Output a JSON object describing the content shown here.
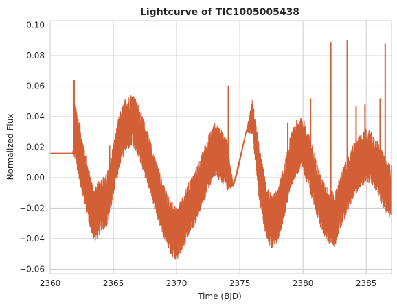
{
  "chart_data": {
    "type": "line",
    "title": "Lightcurve of TIC1005005438",
    "xlabel": "Time (BJD)",
    "ylabel": "Normalized Flux",
    "xlim": [
      2360,
      2387
    ],
    "ylim": [
      -0.063,
      0.103
    ],
    "grid": true,
    "line_color": "#d35f37",
    "xticks": [
      2360,
      2365,
      2370,
      2375,
      2380,
      2385
    ],
    "xtick_labels": [
      "2360",
      "2365",
      "2370",
      "2375",
      "2380",
      "2385"
    ],
    "yticks": [
      -0.06,
      -0.04,
      -0.02,
      0.0,
      0.02,
      0.04,
      0.06,
      0.08,
      0.1
    ],
    "ytick_labels": [
      "−0.06",
      "−0.04",
      "−0.02",
      "0.00",
      "0.02",
      "0.04",
      "0.06",
      "0.08",
      "0.10"
    ],
    "series": [
      {
        "x": [
          2360.0,
          2361.8,
          2362.0,
          2362.5,
          2363.0,
          2363.5,
          2364.0,
          2364.5,
          2365.0,
          2365.5,
          2366.0,
          2366.5,
          2367.0,
          2367.5,
          2368.0,
          2368.5,
          2369.0,
          2369.5,
          2370.0,
          2370.5,
          2371.0,
          2371.5,
          2372.0,
          2372.5,
          2373.0,
          2373.5,
          2374.0,
          2374.5,
          2374.8,
          2375.5,
          2376.0,
          2376.5,
          2377.0,
          2377.5,
          2378.0,
          2378.5,
          2379.0,
          2379.5,
          2380.0,
          2380.5,
          2381.0,
          2381.5,
          2382.0,
          2382.5,
          2383.0,
          2383.5,
          2384.0,
          2384.5,
          2385.0,
          2385.5,
          2386.0,
          2386.5,
          2387.0
        ],
        "y": [
          0.016,
          0.016,
          0.03,
          0.01,
          -0.01,
          -0.025,
          -0.018,
          -0.015,
          0.005,
          0.025,
          0.035,
          0.038,
          0.03,
          0.018,
          0.005,
          -0.01,
          -0.022,
          -0.032,
          -0.038,
          -0.03,
          -0.02,
          -0.012,
          -0.002,
          0.01,
          0.018,
          0.015,
          0.008,
          -0.005,
          0.003,
          0.03,
          0.04,
          0.005,
          -0.018,
          -0.03,
          -0.025,
          -0.01,
          0.01,
          0.02,
          0.022,
          0.01,
          -0.005,
          -0.018,
          -0.025,
          -0.028,
          -0.015,
          -0.005,
          0.005,
          0.01,
          0.015,
          0.012,
          0.005,
          -0.005,
          -0.01
        ],
        "band": [
          0,
          0,
          0.02,
          0.02,
          0.018,
          0.018,
          0.018,
          0.018,
          0.018,
          0.018,
          0.018,
          0.018,
          0.018,
          0.018,
          0.018,
          0.018,
          0.018,
          0.018,
          0.018,
          0.018,
          0.018,
          0.018,
          0.018,
          0.018,
          0.018,
          0.018,
          0.018,
          0,
          0,
          0,
          0.012,
          0.018,
          0.018,
          0.018,
          0.018,
          0.018,
          0.018,
          0.018,
          0.018,
          0.018,
          0.018,
          0.018,
          0.018,
          0.018,
          0.018,
          0.018,
          0.018,
          0.018,
          0.018,
          0.018,
          0.018,
          0.018,
          0.018
        ]
      }
    ],
    "spikes": [
      {
        "x": 2361.9,
        "y": 0.064
      },
      {
        "x": 2364.7,
        "y": 0.021
      },
      {
        "x": 2374.1,
        "y": 0.06
      },
      {
        "x": 2378.8,
        "y": 0.036
      },
      {
        "x": 2380.6,
        "y": 0.052
      },
      {
        "x": 2382.2,
        "y": 0.089
      },
      {
        "x": 2383.5,
        "y": 0.09
      },
      {
        "x": 2384.2,
        "y": 0.047
      },
      {
        "x": 2384.9,
        "y": 0.048
      },
      {
        "x": 2386.1,
        "y": 0.052
      },
      {
        "x": 2386.5,
        "y": 0.088
      }
    ]
  }
}
